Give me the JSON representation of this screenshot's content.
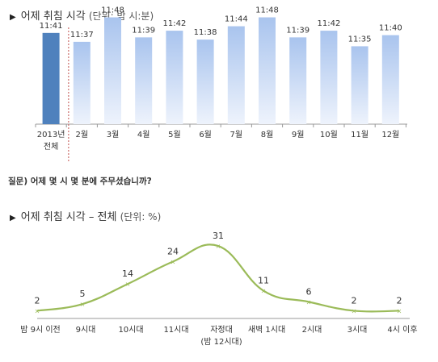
{
  "bar_section": {
    "title": "어제 취침 시각",
    "unit": "(단위: 밤 시:분)"
  },
  "question": "질문) 어제 몇 시 몇 분에 주무셨습니까?",
  "line_section": {
    "title": "어제 취침 시각 – 전체",
    "unit": "(단위: %)"
  },
  "colors": {
    "total_bar": "#4f81bd",
    "month_bar_top": "#a9c4ee",
    "month_bar_bottom": "#eef3fc",
    "line": "#9bbb59",
    "axis": "#999999",
    "divider": "#c0504d"
  },
  "chart_data": [
    {
      "type": "bar",
      "categories": [
        "2013년 전체",
        "2월",
        "3월",
        "4월",
        "5월",
        "6월",
        "7월",
        "8월",
        "9월",
        "10월",
        "11월",
        "12월"
      ],
      "category_lines": [
        [
          "2013년",
          "전체"
        ],
        [
          "2월"
        ],
        [
          "3월"
        ],
        [
          "4월"
        ],
        [
          "5월"
        ],
        [
          "6월"
        ],
        [
          "7월"
        ],
        [
          "8월"
        ],
        [
          "9월"
        ],
        [
          "10월"
        ],
        [
          "11월"
        ],
        [
          "12월"
        ]
      ],
      "values": [
        41,
        37,
        48,
        39,
        42,
        38,
        44,
        48,
        39,
        42,
        35,
        40
      ],
      "labels": [
        "11:41",
        "11:37",
        "11:48",
        "11:39",
        "11:42",
        "11:38",
        "11:44",
        "11:48",
        "11:39",
        "11:42",
        "11:35",
        "11:40"
      ],
      "ylim": [
        0,
        50
      ]
    },
    {
      "type": "line",
      "categories": [
        "밤 9시 이전",
        "9시대",
        "10시대",
        "11시대",
        "자정대",
        "새벽 1시대",
        "2시대",
        "3시대",
        "4시 이후"
      ],
      "category_sublabels": [
        "",
        "",
        "",
        "",
        "(밤 12시대)",
        "",
        "",
        "",
        ""
      ],
      "values": [
        2,
        5,
        14,
        24,
        31,
        11,
        6,
        2,
        2
      ],
      "ylim": [
        0,
        35
      ]
    }
  ]
}
